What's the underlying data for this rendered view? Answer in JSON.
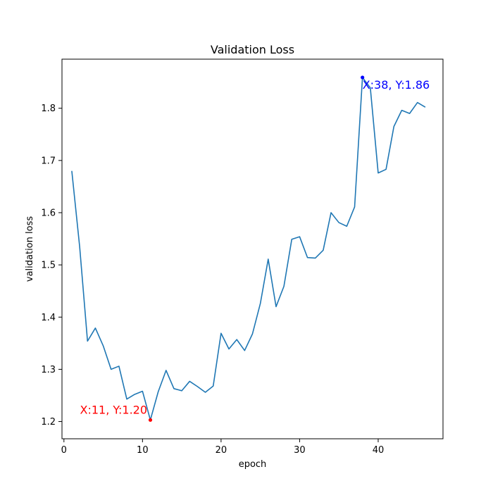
{
  "chart_data": {
    "type": "line",
    "title": "Validation Loss",
    "xlabel": "epoch",
    "ylabel": "validation loss",
    "xlim": [
      -0.25,
      48.25
    ],
    "ylim": [
      1.167,
      1.894
    ],
    "xticks": [
      0,
      10,
      20,
      30,
      40
    ],
    "yticks": [
      1.2,
      1.3,
      1.4,
      1.5,
      1.6,
      1.7,
      1.8
    ],
    "ytick_labels": [
      "1.2",
      "1.3",
      "1.4",
      "1.5",
      "1.6",
      "1.7",
      "1.8"
    ],
    "grid": false,
    "line_color": "#1f77b4",
    "series": [
      {
        "x": [
          1,
          2,
          3,
          4,
          5,
          6,
          7,
          8,
          9,
          10,
          11,
          12,
          13,
          14,
          15,
          16,
          17,
          18,
          19,
          20,
          21,
          22,
          23,
          24,
          25,
          26,
          27,
          28,
          29,
          30,
          31,
          32,
          33,
          34,
          35,
          36,
          37,
          38,
          39,
          40,
          41,
          42,
          43,
          44,
          45,
          46
        ],
        "values": [
          1.68,
          1.535,
          1.354,
          1.379,
          1.345,
          1.3,
          1.306,
          1.243,
          1.252,
          1.258,
          1.203,
          1.257,
          1.298,
          1.263,
          1.259,
          1.277,
          1.267,
          1.256,
          1.268,
          1.369,
          1.339,
          1.357,
          1.336,
          1.368,
          1.426,
          1.511,
          1.42,
          1.459,
          1.549,
          1.554,
          1.514,
          1.513,
          1.528,
          1.6,
          1.581,
          1.574,
          1.611,
          1.859,
          1.839,
          1.676,
          1.683,
          1.765,
          1.796,
          1.79,
          1.811,
          1.802
        ]
      }
    ],
    "annotations": [
      {
        "text": "X:11, Y:1.20",
        "x": 11,
        "y": 1.203,
        "color": "#ff0000"
      },
      {
        "text": "X:38, Y:1.86",
        "x": 38,
        "y": 1.859,
        "color": "#0000ff"
      }
    ]
  }
}
